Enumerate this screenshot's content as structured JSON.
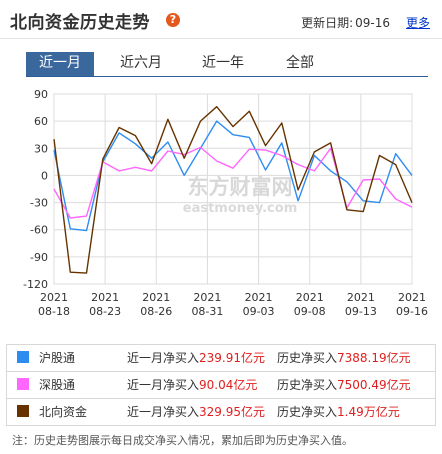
{
  "header": {
    "title": "北向资金历史走势",
    "help_glyph": "?",
    "update_label": "更新日期:",
    "update_date": "09-16",
    "more_link": "更多"
  },
  "tabs": [
    {
      "label": "近一月",
      "active": true
    },
    {
      "label": "近六月",
      "active": false
    },
    {
      "label": "近一年",
      "active": false
    },
    {
      "label": "全部",
      "active": false
    }
  ],
  "watermark": {
    "cn": "东方财富网",
    "en": "eastmoney.com"
  },
  "chart_data": {
    "type": "line",
    "xlabels": [
      "2021\n08-18",
      "2021\n08-23",
      "2021\n08-26",
      "2021\n08-31",
      "2021\n09-03",
      "2021\n09-08",
      "2021\n09-13",
      "2021\n09-16"
    ],
    "y_ticks": [
      90,
      60,
      30,
      0,
      -30,
      -60,
      -90,
      -120
    ],
    "ylim": [
      -120,
      90
    ],
    "grid": true,
    "series": [
      {
        "name": "沪股通",
        "color": "#2d8cf0",
        "values": [
          28,
          -59,
          -61,
          15,
          47,
          35,
          19,
          37,
          0,
          30,
          60,
          45,
          42,
          6,
          36,
          -28,
          22,
          5,
          -7,
          -28,
          -30,
          24,
          0
        ]
      },
      {
        "name": "深股通",
        "color": "#ff66ff",
        "values": [
          -15,
          -47,
          -45,
          15,
          5,
          9,
          5,
          27,
          23,
          31,
          16,
          8,
          29,
          28,
          22,
          12,
          5,
          30,
          -36,
          -5,
          -4,
          -26,
          -35
        ]
      },
      {
        "name": "北向资金",
        "color": "#663300",
        "values": [
          40,
          -107,
          -108,
          18,
          53,
          44,
          13,
          62,
          19,
          60,
          76,
          54,
          71,
          33,
          58,
          -16,
          26,
          36,
          -38,
          -40,
          22,
          12,
          -30
        ]
      }
    ]
  },
  "legend": [
    {
      "name": "沪股通",
      "color": "#2d8cf0",
      "month_label": "近一月净买入",
      "month_value": "239.91亿元",
      "hist_label": "历史净买入",
      "hist_value": "7388.19亿元"
    },
    {
      "name": "深股通",
      "color": "#ff66ff",
      "month_label": "近一月净买入",
      "month_value": "90.04亿元",
      "hist_label": "历史净买入",
      "hist_value": "7500.49亿元"
    },
    {
      "name": "北向资金",
      "color": "#663300",
      "month_label": "近一月净买入",
      "month_value": "329.95亿元",
      "hist_label": "历史净买入",
      "hist_value": "1.49万亿元"
    }
  ],
  "note": "注：历史走势图展示每日成交净买入情况，累加后即为历史净买入值。"
}
